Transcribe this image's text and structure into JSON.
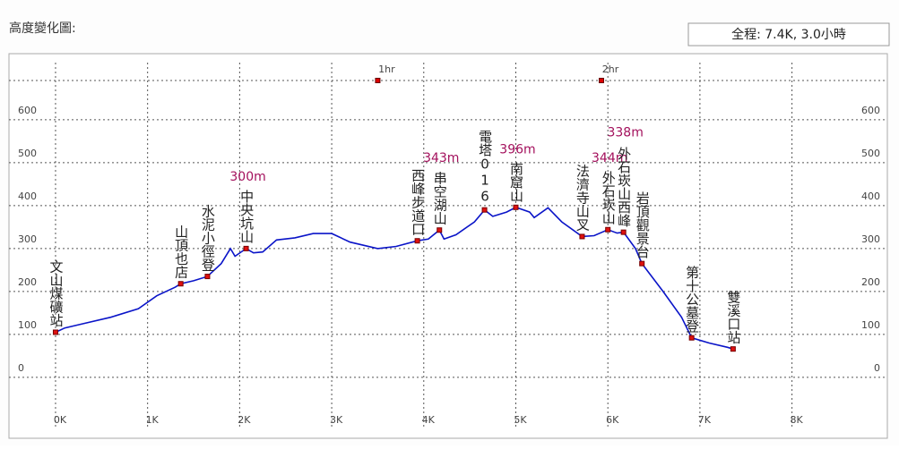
{
  "chart_data": {
    "type": "line",
    "title": "高度變化圖:",
    "summary": "全程: 7.4K, 3.0小時",
    "xlim": [
      -0.506,
      9.036
    ],
    "ylim": [
      -142,
      754
    ],
    "xticks": [
      {
        "value": 0,
        "label": "0K"
      },
      {
        "value": 1,
        "label": "1K"
      },
      {
        "value": 2,
        "label": "2K"
      },
      {
        "value": 3,
        "label": "3K"
      },
      {
        "value": 4,
        "label": "4K"
      },
      {
        "value": 5,
        "label": "5K"
      },
      {
        "value": 6,
        "label": "6K"
      },
      {
        "value": 7,
        "label": "7K"
      },
      {
        "value": 8,
        "label": "8K"
      }
    ],
    "yticks": [
      0,
      100,
      200,
      300,
      400,
      500,
      600
    ],
    "grid": true,
    "color": "#0a14c8",
    "x": [
      0,
      0.1,
      0.3,
      0.6,
      0.9,
      1.1,
      1.3,
      1.36,
      1.5,
      1.65,
      1.8,
      1.9,
      1.95,
      2.07,
      2.15,
      2.25,
      2.4,
      2.6,
      2.8,
      3.0,
      3.2,
      3.5,
      3.7,
      3.93,
      4.05,
      4.17,
      4.22,
      4.35,
      4.55,
      4.66,
      4.75,
      4.9,
      5.0,
      5.15,
      5.2,
      5.35,
      5.5,
      5.72,
      5.85,
      6.0,
      6.1,
      6.17,
      6.3,
      6.37,
      6.6,
      6.8,
      6.91,
      7.1,
      7.3,
      7.36
    ],
    "values": [
      105,
      115,
      125,
      140,
      160,
      190,
      210,
      218,
      225,
      235,
      265,
      300,
      282,
      300,
      290,
      292,
      320,
      325,
      335,
      335,
      315,
      300,
      305,
      318,
      322,
      343,
      322,
      332,
      362,
      390,
      375,
      385,
      396,
      385,
      372,
      395,
      362,
      328,
      330,
      344,
      336,
      338,
      300,
      265,
      200,
      140,
      92,
      80,
      70,
      66
    ],
    "waypoints": {
      "names": [
        "文山煤礦站",
        "山頂也店",
        "水泥小徑登",
        "中央坑山",
        "西峰步道口",
        "串空湖山",
        "電塔016",
        "南窟山",
        "法濟寺山叉",
        "外石崁山",
        "外石崁山西峰",
        "岩頂觀景台",
        "第十公墓登",
        "雙溪口站"
      ],
      "x": [
        0,
        1.36,
        1.65,
        2.07,
        3.93,
        4.17,
        4.66,
        5.0,
        5.72,
        6.0,
        6.17,
        6.37,
        6.91,
        7.36
      ],
      "values": [
        105,
        218,
        235,
        300,
        318,
        343,
        390,
        396,
        328,
        344,
        338,
        265,
        92,
        66
      ],
      "value_labels": [
        null,
        null,
        null,
        "300m",
        null,
        "343m",
        null,
        "396m",
        null,
        "344m",
        "338m",
        null,
        null,
        null
      ]
    },
    "time_markers": {
      "labels": [
        "1hr",
        "2hr"
      ],
      "x": [
        3.5,
        5.93
      ]
    }
  }
}
